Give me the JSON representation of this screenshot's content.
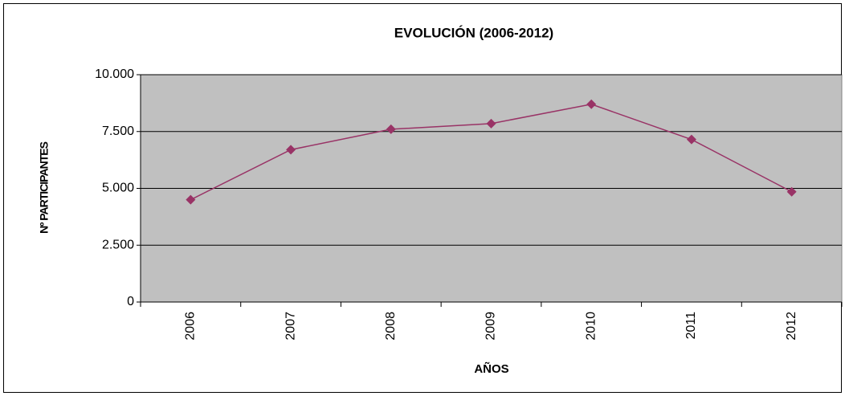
{
  "chart_data": {
    "type": "line",
    "title": "EVOLUCIÓN (2006-2012)",
    "x_label": "AÑOS",
    "y_label": "Nº PARTICIPANTES",
    "categories": [
      "2006",
      "2007",
      "2008",
      "2009",
      "2010",
      "2011",
      "2012"
    ],
    "values": [
      4500,
      6700,
      7600,
      7850,
      8700,
      7150,
      4850
    ],
    "color": "#993366",
    "plot_background": "#c0c0c0",
    "ylim": [
      0,
      10000
    ],
    "yticks": [
      0,
      {
        "value": 2500,
        "label": "2.500"
      },
      {
        "value": 5000,
        "label": "5.000"
      },
      {
        "value": 7500,
        "label": "7.500"
      },
      {
        "value": 10000,
        "label": "10.000"
      }
    ],
    "grid": true
  }
}
